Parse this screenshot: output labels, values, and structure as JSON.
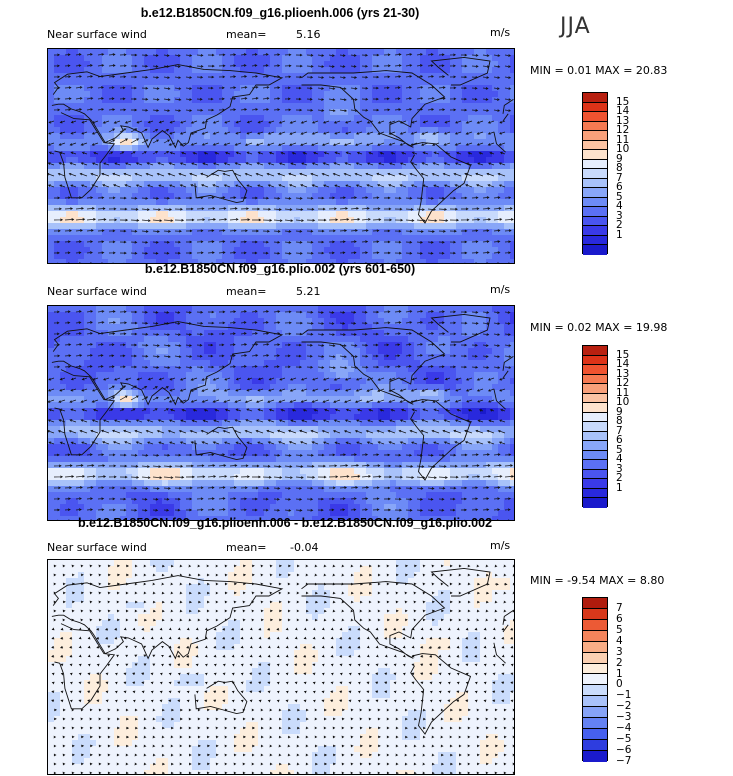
{
  "season_label": "JJA",
  "colors": {
    "seq": [
      "#1a1acc",
      "#2929dd",
      "#3a3ae8",
      "#4a55f0",
      "#5b70f4",
      "#6d8bf6",
      "#88a6f8",
      "#a8c2fa",
      "#c8dafc",
      "#e6eefd",
      "#fde2cc",
      "#fbc3a3",
      "#f8a07a",
      "#f57a52",
      "#ef5330",
      "#dd3318",
      "#b82010"
    ],
    "diff": [
      "#1a1acc",
      "#2e3ddf",
      "#4660ee",
      "#6482f4",
      "#86a3f7",
      "#a9c2fa",
      "#cadcfc",
      "#eef3fd",
      "#fdeedd",
      "#fbd0b2",
      "#f8ad86",
      "#f4845b",
      "#ec5a35",
      "#d8381b",
      "#b01b0d"
    ]
  },
  "chart_data": [
    {
      "type": "heatmap",
      "title": "b.e12.B1850CN.f09_g16.plioenh.006 (yrs 21-30)",
      "field_label": "Near surface wind",
      "mean_label": "mean=",
      "mean_value": "5.16",
      "units": "m/s",
      "min_max": "MIN =   0.01 MAX =  20.83",
      "min": 0.01,
      "max": 20.83,
      "colorbar_levels": [
        "15",
        "14",
        "13",
        "12",
        "11",
        "10",
        "9",
        "8",
        "7",
        "6",
        "5",
        "4",
        "3",
        "2",
        "1"
      ]
    },
    {
      "type": "heatmap",
      "title": "b.e12.B1850CN.f09_g16.plio.002 (yrs 601-650)",
      "field_label": "Near surface wind",
      "mean_label": "mean=",
      "mean_value": "5.21",
      "units": "m/s",
      "min_max": "MIN =   0.02 MAX =  19.98",
      "min": 0.02,
      "max": 19.98,
      "colorbar_levels": [
        "15",
        "14",
        "13",
        "12",
        "11",
        "10",
        "9",
        "8",
        "7",
        "6",
        "5",
        "4",
        "3",
        "2",
        "1"
      ]
    },
    {
      "type": "heatmap",
      "title": "b.e12.B1850CN.f09_g16.plioenh.006 - b.e12.B1850CN.f09_g16.plio.002",
      "field_label": "Near surface wind",
      "mean_label": "mean=",
      "mean_value": "-0.04",
      "units": "m/s",
      "min_max": "MIN =  -9.54 MAX =   8.80",
      "min": -9.54,
      "max": 8.8,
      "colorbar_levels": [
        "7",
        "6",
        "5",
        "4",
        "3",
        "2",
        "1",
        "0",
        "−1",
        "−2",
        "−3",
        "−4",
        "−5",
        "−6",
        "−7"
      ]
    }
  ]
}
